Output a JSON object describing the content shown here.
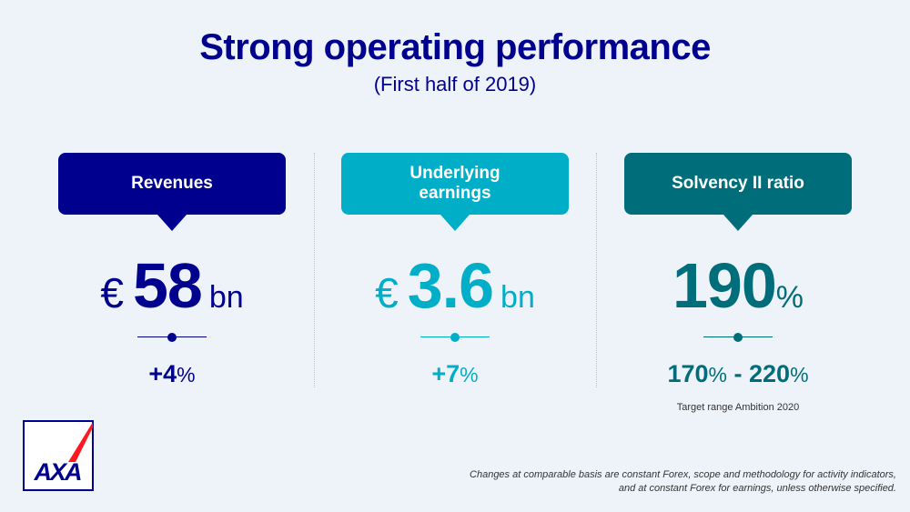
{
  "header": {
    "title": "Strong operating performance",
    "subtitle": "(First half of 2019)"
  },
  "colors": {
    "navy": "#00008f",
    "cyan": "#00aec7",
    "teal": "#006e7a",
    "logo_red": "#ff1721"
  },
  "columns": [
    {
      "label": "Revenues",
      "currency": "€",
      "value": "58",
      "unit": "bn",
      "change_value": "+4",
      "change_unit": "%"
    },
    {
      "label": "Underlying earnings",
      "currency": "€",
      "value": "3.6",
      "unit": "bn",
      "change_value": "+7",
      "change_unit": "%"
    },
    {
      "label": "Solvency II ratio",
      "value": "190",
      "unit": "%",
      "range_low": "170",
      "range_low_unit": "%",
      "range_dash": "-",
      "range_high": "220",
      "range_high_unit": "%",
      "target_note": "Target range Ambition 2020"
    }
  ],
  "logo": {
    "text": "AXA"
  },
  "footnote": {
    "line1": "Changes at comparable basis are constant Forex, scope and methodology for activity indicators,",
    "line2": "and at constant Forex for earnings, unless otherwise specified."
  }
}
